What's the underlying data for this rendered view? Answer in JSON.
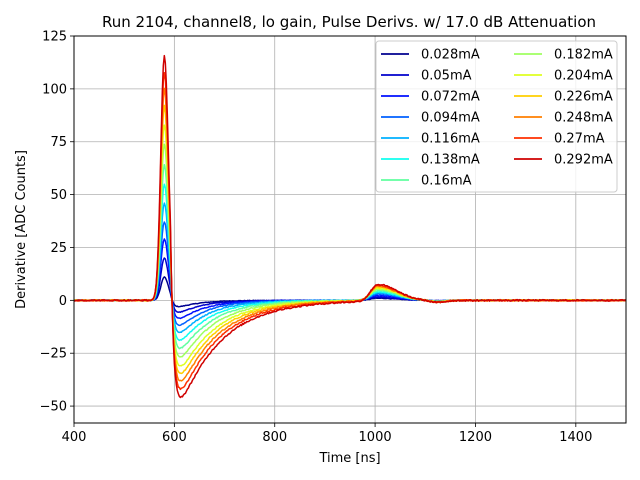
{
  "chart_data": {
    "type": "line",
    "title": "Run 2104, channel8, lo gain, Pulse Derivs. w/ 17.0 dB Attenuation",
    "xlabel": "Time [ns]",
    "ylabel": "Derivative [ADC Counts]",
    "xlim": [
      400,
      1500
    ],
    "ylim": [
      -58,
      125
    ],
    "xticks": [
      400,
      600,
      800,
      1000,
      1200,
      1400
    ],
    "xtick_labels": [
      "400",
      "600",
      "800",
      "1000",
      "1200",
      "1400"
    ],
    "yticks": [
      -50,
      -25,
      0,
      25,
      50,
      75,
      100,
      125
    ],
    "ytick_labels": [
      "−50",
      "−25",
      "0",
      "25",
      "50",
      "75",
      "100",
      "125"
    ],
    "grid": true,
    "legend_position": "top-right",
    "series": [
      {
        "name": "0.028mA",
        "color": "#00008f",
        "peak": 11,
        "trough": -5,
        "bump": 1.0
      },
      {
        "name": "0.05mA",
        "color": "#0000cc",
        "peak": 20,
        "trough": -9,
        "bump": 1.5
      },
      {
        "name": "0.072mA",
        "color": "#0010ff",
        "peak": 29,
        "trough": -13,
        "bump": 2.2
      },
      {
        "name": "0.094mA",
        "color": "#0060ff",
        "peak": 37,
        "trough": -17,
        "bump": 2.9
      },
      {
        "name": "0.116mA",
        "color": "#00b0ff",
        "peak": 46,
        "trough": -21,
        "bump": 3.5
      },
      {
        "name": "0.138mA",
        "color": "#10ffef",
        "peak": 55,
        "trough": -25,
        "bump": 4.1
      },
      {
        "name": "0.16mA",
        "color": "#60ff9f",
        "peak": 64,
        "trough": -29,
        "bump": 4.7
      },
      {
        "name": "0.182mA",
        "color": "#9fff60",
        "peak": 74,
        "trough": -33,
        "bump": 5.3
      },
      {
        "name": "0.204mA",
        "color": "#dfff20",
        "peak": 83,
        "trough": -37,
        "bump": 5.9
      },
      {
        "name": "0.226mA",
        "color": "#ffcf00",
        "peak": 92,
        "trough": -40,
        "bump": 6.4
      },
      {
        "name": "0.248mA",
        "color": "#ff7f00",
        "peak": 100,
        "trough": -43,
        "bump": 6.9
      },
      {
        "name": "0.27mA",
        "color": "#ff3000",
        "peak": 108,
        "trough": -46,
        "bump": 7.4
      },
      {
        "name": "0.292mA",
        "color": "#cf0000",
        "peak": 116,
        "trough": -49,
        "bump": 7.9
      }
    ]
  }
}
